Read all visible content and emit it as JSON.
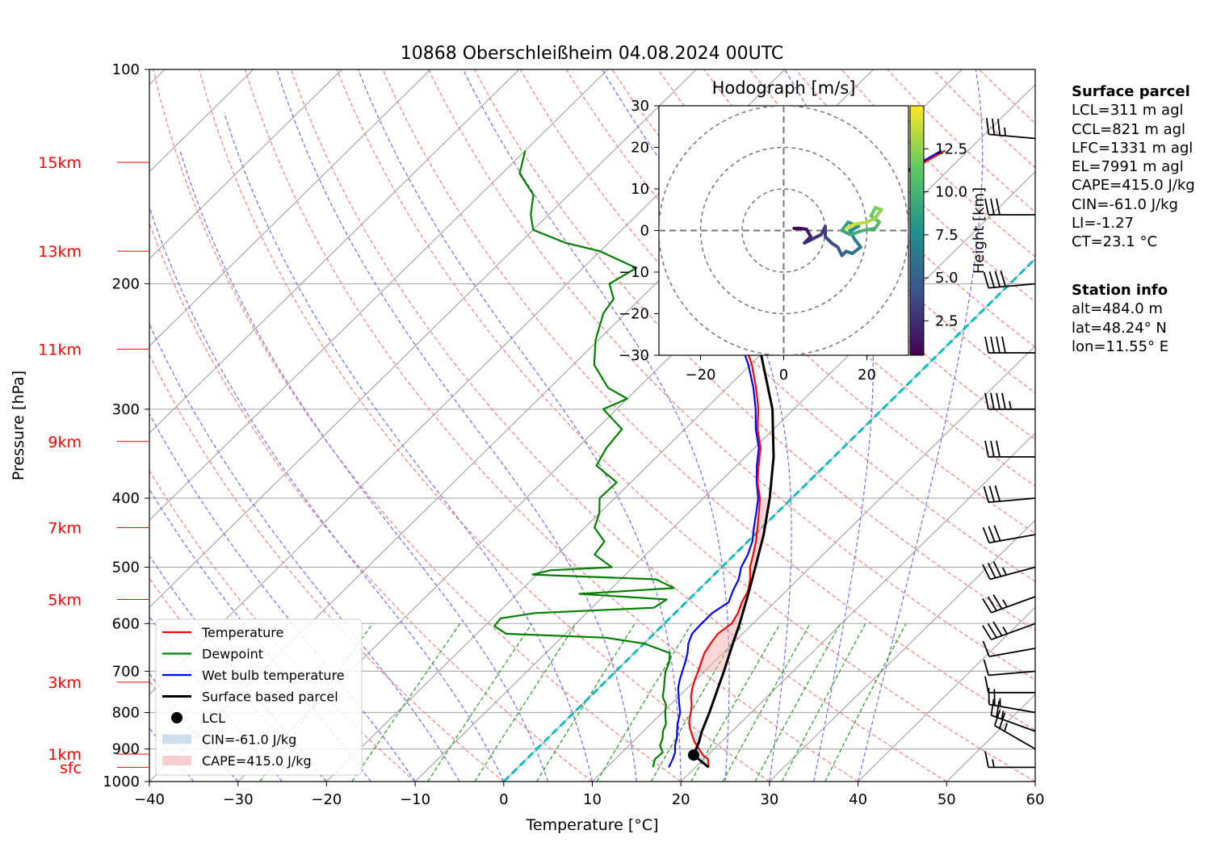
{
  "chart_data": {
    "type": "line",
    "title": "10868 Oberschleißheim 04.08.2024 00UTC",
    "xlabel": "Temperature [°C]",
    "ylabel": "Pressure [hPa]",
    "xlim": [
      -40,
      60
    ],
    "ylim": [
      1000,
      100
    ],
    "y_scale": "log",
    "x_ticks": [
      "−40",
      "−30",
      "−20",
      "−10",
      "0",
      "10",
      "20",
      "30",
      "40",
      "50",
      "60"
    ],
    "x_tick_values": [
      -40,
      -30,
      -20,
      -10,
      0,
      10,
      20,
      30,
      40,
      50,
      60
    ],
    "y_ticks": [
      "100",
      "200",
      "300",
      "400",
      "500",
      "600",
      "700",
      "800",
      "900",
      "1000"
    ],
    "y_tick_values": [
      100,
      200,
      300,
      400,
      500,
      600,
      700,
      800,
      900,
      1000
    ],
    "height_labels": [
      {
        "label": "sfc",
        "p": 955
      },
      {
        "label": "1km",
        "p": 915
      },
      {
        "label": "3km",
        "p": 725
      },
      {
        "label": "5km",
        "p": 555
      },
      {
        "label": "7km",
        "p": 440
      },
      {
        "label": "9km",
        "p": 333
      },
      {
        "label": "11km",
        "p": 247
      },
      {
        "label": "13km",
        "p": 180
      },
      {
        "label": "15km",
        "p": 135
      }
    ],
    "grid": true,
    "legend_position": "lower-left",
    "legend": [
      "Temperature",
      "Dewpoint",
      "Wet bulb temperature",
      "Surface based parcel",
      "LCL",
      "CIN=-61.0 J/kg",
      "CAPE=415.0 J/kg"
    ],
    "series": [
      {
        "name": "Temperature",
        "color": "#ff0000",
        "points": [
          [
            955,
            21.5
          ],
          [
            930,
            20.5
          ],
          [
            920,
            19.6
          ],
          [
            900,
            18.3
          ],
          [
            880,
            17
          ],
          [
            860,
            15.9
          ],
          [
            840,
            14.8
          ],
          [
            820,
            13.9
          ],
          [
            800,
            13.2
          ],
          [
            780,
            12.4
          ],
          [
            760,
            11.4
          ],
          [
            740,
            10.6
          ],
          [
            720,
            9.9
          ],
          [
            700,
            9.3
          ],
          [
            680,
            8.6
          ],
          [
            660,
            7.9
          ],
          [
            640,
            7.5
          ],
          [
            620,
            7.2
          ],
          [
            600,
            7.6
          ],
          [
            580,
            7.1
          ],
          [
            560,
            6.3
          ],
          [
            540,
            5.7
          ],
          [
            520,
            4.6
          ],
          [
            500,
            3.2
          ],
          [
            480,
            2.1
          ],
          [
            460,
            0.9
          ],
          [
            440,
            -0.5
          ],
          [
            420,
            -2
          ],
          [
            400,
            -3.6
          ],
          [
            380,
            -5.7
          ],
          [
            360,
            -7.5
          ],
          [
            340,
            -9.3
          ],
          [
            320,
            -11.8
          ],
          [
            300,
            -14
          ],
          [
            280,
            -16.7
          ],
          [
            260,
            -19.8
          ],
          [
            240,
            -23.6
          ],
          [
            220,
            -27.7
          ],
          [
            205,
            -30.4
          ],
          [
            195,
            -32.5
          ],
          [
            185,
            -33.8
          ],
          [
            180,
            -34
          ],
          [
            175,
            -33.5
          ],
          [
            170,
            -32.2
          ],
          [
            165,
            -30.4
          ],
          [
            160,
            -28.5
          ],
          [
            150,
            -26.2
          ],
          [
            140,
            -24.5
          ],
          [
            130,
            -22.6
          ]
        ]
      },
      {
        "name": "Dewpoint",
        "color": "#008000",
        "points": [
          [
            955,
            15.2
          ],
          [
            930,
            14.5
          ],
          [
            910,
            14.6
          ],
          [
            890,
            13.5
          ],
          [
            870,
            13
          ],
          [
            850,
            12.2
          ],
          [
            830,
            11.7
          ],
          [
            800,
            10.3
          ],
          [
            780,
            9.5
          ],
          [
            760,
            8.2
          ],
          [
            740,
            7.4
          ],
          [
            720,
            6.5
          ],
          [
            700,
            5.6
          ],
          [
            680,
            5
          ],
          [
            660,
            4
          ],
          [
            640,
            0
          ],
          [
            628,
            -5
          ],
          [
            620,
            -16.7
          ],
          [
            605,
            -18.9
          ],
          [
            590,
            -19.1
          ],
          [
            580,
            -15.8
          ],
          [
            570,
            -3
          ],
          [
            555,
            -2.5
          ],
          [
            545,
            -13
          ],
          [
            535,
            -3
          ],
          [
            525,
            -5
          ],
          [
            520,
            -6
          ],
          [
            512,
            -20.5
          ],
          [
            505,
            -19
          ],
          [
            500,
            -12.4
          ],
          [
            480,
            -15.8
          ],
          [
            460,
            -16.2
          ],
          [
            440,
            -18.9
          ],
          [
            420,
            -20
          ],
          [
            400,
            -21.7
          ],
          [
            380,
            -21.6
          ],
          [
            360,
            -25.8
          ],
          [
            340,
            -26.7
          ],
          [
            320,
            -27.1
          ],
          [
            300,
            -31.5
          ],
          [
            290,
            -30
          ],
          [
            280,
            -33.4
          ],
          [
            260,
            -37.6
          ],
          [
            240,
            -40.3
          ],
          [
            220,
            -42.5
          ],
          [
            210,
            -43
          ],
          [
            200,
            -45.2
          ],
          [
            190,
            -44
          ],
          [
            180,
            -50
          ],
          [
            175,
            -55
          ],
          [
            168,
            -60
          ],
          [
            160,
            -62
          ],
          [
            150,
            -64
          ],
          [
            140,
            -68
          ],
          [
            130,
            -70
          ]
        ]
      },
      {
        "name": "Wet bulb temperature",
        "color": "#0000ff",
        "points": [
          [
            955,
            17
          ],
          [
            930,
            16.5
          ],
          [
            910,
            16
          ],
          [
            890,
            15.2
          ],
          [
            870,
            14.6
          ],
          [
            850,
            13.8
          ],
          [
            830,
            13
          ],
          [
            800,
            12
          ],
          [
            780,
            11
          ],
          [
            760,
            10
          ],
          [
            740,
            9
          ],
          [
            720,
            8.2
          ],
          [
            700,
            7.5
          ],
          [
            680,
            6.8
          ],
          [
            660,
            6
          ],
          [
            640,
            5
          ],
          [
            620,
            4.3
          ],
          [
            600,
            4.2
          ],
          [
            580,
            4.2
          ],
          [
            560,
            4.8
          ],
          [
            540,
            4
          ],
          [
            520,
            3.3
          ],
          [
            500,
            2.2
          ],
          [
            480,
            1.5
          ],
          [
            460,
            0.5
          ],
          [
            440,
            -0.9
          ],
          [
            420,
            -2.3
          ],
          [
            400,
            -3.8
          ],
          [
            380,
            -5.8
          ],
          [
            360,
            -7.7
          ],
          [
            340,
            -9.5
          ],
          [
            320,
            -12
          ],
          [
            300,
            -14.3
          ],
          [
            280,
            -17
          ],
          [
            260,
            -20.2
          ],
          [
            240,
            -24
          ],
          [
            220,
            -28
          ],
          [
            205,
            -30.7
          ],
          [
            195,
            -32.7
          ],
          [
            185,
            -34
          ],
          [
            180,
            -34.2
          ],
          [
            175,
            -33.7
          ],
          [
            170,
            -32.5
          ],
          [
            165,
            -30.8
          ],
          [
            160,
            -28.9
          ],
          [
            150,
            -26.6
          ],
          [
            140,
            -24.9
          ],
          [
            130,
            -23
          ]
        ]
      },
      {
        "name": "Surface based parcel",
        "color": "#000000",
        "points": [
          [
            955,
            21.5
          ],
          [
            918,
            18.4
          ],
          [
            880,
            17.5
          ],
          [
            850,
            16.6
          ],
          [
            800,
            15.3
          ],
          [
            750,
            13.8
          ],
          [
            700,
            12.2
          ],
          [
            650,
            10.4
          ],
          [
            600,
            8.5
          ],
          [
            550,
            6.3
          ],
          [
            500,
            3.8
          ],
          [
            450,
            1
          ],
          [
            400,
            -2.5
          ],
          [
            350,
            -6.8
          ],
          [
            300,
            -12.4
          ],
          [
            250,
            -20.2
          ],
          [
            200,
            -31
          ],
          [
            160,
            -43
          ],
          [
            130,
            -54
          ]
        ]
      }
    ],
    "lcl": {
      "p": 918,
      "t": 18.4
    },
    "cin_shading": {
      "label": "CIN=-61.0 J/kg",
      "color": "#a6c6e0",
      "p_top": 850,
      "p_bottom": 955
    },
    "cape_shading": {
      "label": "CAPE=415.0 J/kg",
      "color": "#f4a6a6",
      "p_bottom": 700,
      "p_top": 400
    },
    "wind_barbs": [
      {
        "p": 955,
        "speed_kt": 5,
        "dir": 270
      },
      {
        "p": 900,
        "speed_kt": 15,
        "dir": 300
      },
      {
        "p": 850,
        "speed_kt": 15,
        "dir": 290
      },
      {
        "p": 800,
        "speed_kt": 15,
        "dir": 280
      },
      {
        "p": 750,
        "speed_kt": 10,
        "dir": 270
      },
      {
        "p": 700,
        "speed_kt": 10,
        "dir": 265
      },
      {
        "p": 650,
        "speed_kt": 10,
        "dir": 260
      },
      {
        "p": 600,
        "speed_kt": 25,
        "dir": 250
      },
      {
        "p": 550,
        "speed_kt": 25,
        "dir": 250
      },
      {
        "p": 500,
        "speed_kt": 25,
        "dir": 255
      },
      {
        "p": 450,
        "speed_kt": 30,
        "dir": 260
      },
      {
        "p": 400,
        "speed_kt": 30,
        "dir": 265
      },
      {
        "p": 350,
        "speed_kt": 30,
        "dir": 270
      },
      {
        "p": 300,
        "speed_kt": 35,
        "dir": 270
      },
      {
        "p": 250,
        "speed_kt": 40,
        "dir": 270
      },
      {
        "p": 200,
        "speed_kt": 40,
        "dir": 265
      },
      {
        "p": 160,
        "speed_kt": 30,
        "dir": 270
      },
      {
        "p": 125,
        "speed_kt": 25,
        "dir": 275
      }
    ],
    "hodograph": {
      "title": "Hodograph [m/s]",
      "xlim": [
        -30,
        30
      ],
      "ylim": [
        -30,
        30
      ],
      "x_ticks": [
        "−20",
        "0",
        "20"
      ],
      "x_tick_values": [
        -20,
        0,
        20
      ],
      "y_ticks": [
        "30",
        "20",
        "10",
        "0",
        "−10",
        "−20",
        "−30"
      ],
      "y_tick_values": [
        30,
        20,
        10,
        0,
        -10,
        -20,
        -30
      ],
      "rings": [
        10,
        20,
        30
      ],
      "colorbar_label": "Height [km]",
      "colorbar_ticks": [
        "2.5",
        "5.0",
        "7.5",
        "10.0",
        "12.5"
      ],
      "colorbar_tick_values": [
        2.5,
        5.0,
        7.5,
        10.0,
        12.5
      ],
      "colorbar_range": [
        0.5,
        15
      ],
      "points": [
        [
          2.5,
          0.5,
          0.5
        ],
        [
          4,
          0.5,
          1
        ],
        [
          5.5,
          0.3,
          1.5
        ],
        [
          6.5,
          -1.5,
          2
        ],
        [
          5,
          -3,
          2.3
        ],
        [
          7,
          -2,
          2.7
        ],
        [
          9,
          -1,
          3
        ],
        [
          10,
          1,
          3.3
        ],
        [
          10,
          -1.5,
          3.6
        ],
        [
          11.5,
          -3,
          4
        ],
        [
          13,
          -4,
          4.5
        ],
        [
          14,
          -6,
          5
        ],
        [
          15,
          -5,
          5.5
        ],
        [
          16.5,
          -5.5,
          6
        ],
        [
          18.5,
          -4,
          6.5
        ],
        [
          17,
          -2,
          7
        ],
        [
          16,
          0,
          7.5
        ],
        [
          18,
          1,
          8
        ],
        [
          15.5,
          2,
          8.5
        ],
        [
          14,
          0,
          9
        ],
        [
          16,
          -1,
          9.5
        ],
        [
          19,
          0,
          10
        ],
        [
          22,
          0.5,
          10.5
        ],
        [
          23,
          2,
          11
        ],
        [
          21,
          3.5,
          11.5
        ],
        [
          22,
          5.5,
          12
        ],
        [
          23.5,
          5,
          12.5
        ],
        [
          22,
          3,
          13
        ],
        [
          20,
          2,
          13.5
        ],
        [
          17,
          1.5,
          14
        ],
        [
          15,
          0.5,
          14.5
        ]
      ]
    },
    "mixing_ratio_lines": true,
    "dry_adiabats": true,
    "moist_adiabats": true,
    "freezing_level_line": true
  },
  "panel": {
    "surface_title": "Surface parcel",
    "surface_lines": [
      "LCL=311 m agl",
      "CCL=821 m agl",
      "LFC=1331 m agl",
      "EL=7991 m agl",
      "CAPE=415.0 J/kg",
      "CIN=-61.0 J/kg",
      "LI=-1.27",
      "CT=23.1 °C"
    ],
    "station_title": "Station info",
    "station_lines": [
      "alt=484.0 m",
      "lat=48.24° N",
      "lon=11.55° E"
    ]
  },
  "colors": {
    "temperature": "#ff0000",
    "dewpoint": "#008000",
    "wetbulb": "#0000ff",
    "parcel": "#000000",
    "height_labels": "#ff0000",
    "freezing_line": "#00bfbf"
  }
}
